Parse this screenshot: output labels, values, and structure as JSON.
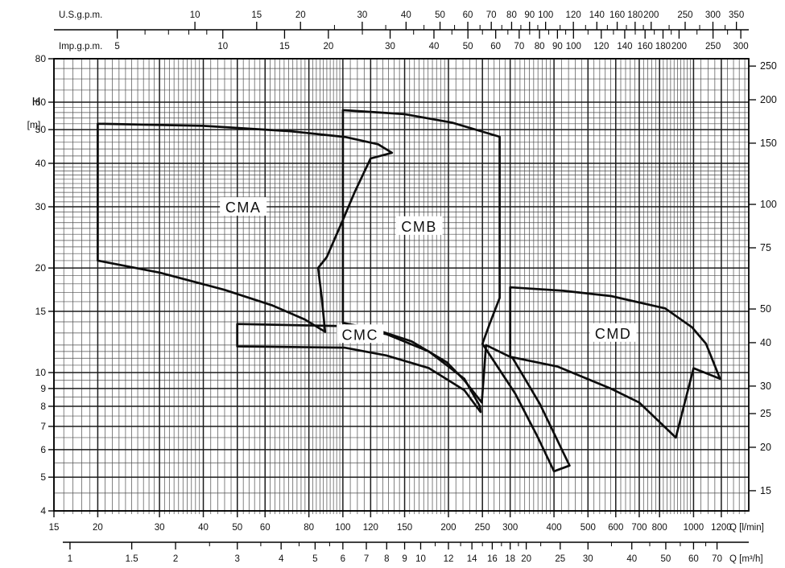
{
  "chart_data": {
    "type": "line",
    "title": "",
    "x_axis": {
      "label": "Q [l/min]",
      "scale": "log",
      "min": 15,
      "max": 1437,
      "labeled_ticks": [
        15,
        20,
        30,
        40,
        50,
        60,
        80,
        100,
        120,
        150,
        200,
        250,
        300,
        400,
        500,
        600,
        700,
        800,
        1000,
        1200
      ],
      "minor_ranges": [
        [
          15,
          40,
          1
        ],
        [
          40,
          100,
          2
        ],
        [
          100,
          200,
          5
        ],
        [
          200,
          400,
          10
        ],
        [
          400,
          1000,
          20
        ],
        [
          1000,
          1437,
          50
        ]
      ]
    },
    "y_axis": {
      "label": "H",
      "unit": "[m]",
      "scale": "log",
      "min": 4,
      "max": 80,
      "labeled_ticks": [
        4,
        5,
        6,
        7,
        8,
        9,
        10,
        15,
        20,
        30,
        40,
        50,
        60,
        80
      ],
      "minor_ranges": [
        [
          4,
          12,
          0.5
        ],
        [
          12,
          40,
          1
        ],
        [
          40,
          60,
          2
        ],
        [
          60,
          80,
          5
        ]
      ]
    },
    "right_axis": {
      "labeled_ticks": [
        15,
        20,
        25,
        30,
        40,
        50,
        75,
        100,
        150,
        200,
        250
      ],
      "feet_to_m": 0.3048
    },
    "top_scales": [
      {
        "label": "U.S.g.p.m.",
        "to_l_min": 3.7854,
        "side": "above",
        "labeled_ticks": [
          10,
          15,
          20,
          30,
          40,
          50,
          60,
          70,
          80,
          90,
          100,
          120,
          140,
          160,
          180,
          200,
          250,
          300,
          350
        ],
        "minor_ticks": [
          25,
          35,
          45,
          55,
          65,
          75,
          85,
          95,
          110,
          130,
          150,
          170,
          190,
          225,
          275,
          325
        ]
      },
      {
        "label": "Imp.g.p.m.",
        "to_l_min": 4.5461,
        "side": "below",
        "labeled_ticks": [
          5,
          10,
          15,
          20,
          30,
          40,
          50,
          60,
          70,
          80,
          90,
          100,
          120,
          140,
          160,
          180,
          200,
          250,
          300
        ],
        "minor_ticks": [
          6,
          7,
          8,
          9,
          25,
          35,
          45,
          55,
          65,
          75,
          85,
          95,
          110,
          130,
          150,
          170,
          190,
          225,
          275
        ]
      }
    ],
    "bottom_scale": {
      "label": "Q [m³/h]",
      "to_l_min": 16.6667,
      "labeled_ticks": [
        1,
        1.5,
        2,
        3,
        4,
        5,
        6,
        7,
        8,
        9,
        10,
        12,
        14,
        16,
        18,
        20,
        25,
        30,
        40,
        50,
        60,
        70
      ],
      "minor_ticks": [
        2.5,
        3.5,
        4.5,
        5.5,
        11,
        13,
        15,
        17,
        19,
        22,
        35,
        45,
        55,
        65
      ]
    },
    "series": [
      {
        "name": "CMA",
        "points": [
          [
            20,
            52
          ],
          [
            40,
            51.3
          ],
          [
            71,
            49.5
          ],
          [
            102,
            47.6
          ],
          [
            126,
            45.4
          ],
          [
            138,
            42.9
          ],
          [
            120,
            41.3
          ],
          [
            108,
            33
          ],
          [
            100,
            27.5
          ],
          [
            90,
            21.5
          ],
          [
            85,
            20
          ],
          [
            87,
            16.5
          ],
          [
            89,
            13.1
          ],
          [
            78,
            14.2
          ],
          [
            63,
            15.6
          ],
          [
            46,
            17.3
          ],
          [
            30,
            19.4
          ],
          [
            20,
            21
          ]
        ]
      },
      {
        "name": "CMB",
        "points": [
          [
            100,
            56.9
          ],
          [
            150,
            55.4
          ],
          [
            205,
            52.4
          ],
          [
            280,
            47.7
          ],
          [
            280,
            16.4
          ],
          [
            262,
            13.8
          ],
          [
            250,
            12.1
          ],
          [
            310,
            8.7
          ],
          [
            360,
            6.5
          ],
          [
            400,
            5.2
          ],
          [
            443,
            5.4
          ],
          [
            365,
            8.1
          ],
          [
            305,
            11
          ],
          [
            256,
            12
          ],
          [
            249,
            8.2
          ],
          [
            222,
            9.5
          ],
          [
            198,
            10.7
          ],
          [
            157,
            12.3
          ],
          [
            124,
            13.3
          ],
          [
            100,
            13.9
          ]
        ]
      },
      {
        "name": "CMC",
        "points": [
          [
            50,
            13.8
          ],
          [
            101,
            13.6
          ],
          [
            133,
            12.9
          ],
          [
            176,
            11.5
          ],
          [
            222,
            9.6
          ],
          [
            246,
            8
          ],
          [
            247,
            7.7
          ],
          [
            222,
            8.9
          ],
          [
            176,
            10.3
          ],
          [
            133,
            11.2
          ],
          [
            101,
            11.8
          ],
          [
            50,
            11.9
          ]
        ]
      },
      {
        "name": "CMD",
        "points": [
          [
            300,
            17.6
          ],
          [
            425,
            17.2
          ],
          [
            582,
            16.6
          ],
          [
            830,
            15.3
          ],
          [
            990,
            13.5
          ],
          [
            1085,
            12.1
          ],
          [
            1190,
            9.6
          ],
          [
            1000,
            10.3
          ],
          [
            890,
            6.5
          ],
          [
            700,
            8.2
          ],
          [
            580,
            9
          ],
          [
            410,
            10.4
          ],
          [
            300,
            11.1
          ]
        ]
      }
    ],
    "region_labels": [
      {
        "text": "CMA",
        "q": 52,
        "h": 29.5
      },
      {
        "text": "CMB",
        "q": 165,
        "h": 26
      },
      {
        "text": "CMC",
        "q": 112,
        "h": 12.7
      },
      {
        "text": "CMD",
        "q": 590,
        "h": 12.8
      }
    ],
    "colors": {
      "envelope": "#0d0d0d",
      "grid_minor": "#4d4d4d",
      "grid_major": "#1b1b1b",
      "border": "#000000",
      "background": "#ffffff"
    },
    "legend": "none",
    "grid": "log-log, minor and major gridlines on"
  }
}
